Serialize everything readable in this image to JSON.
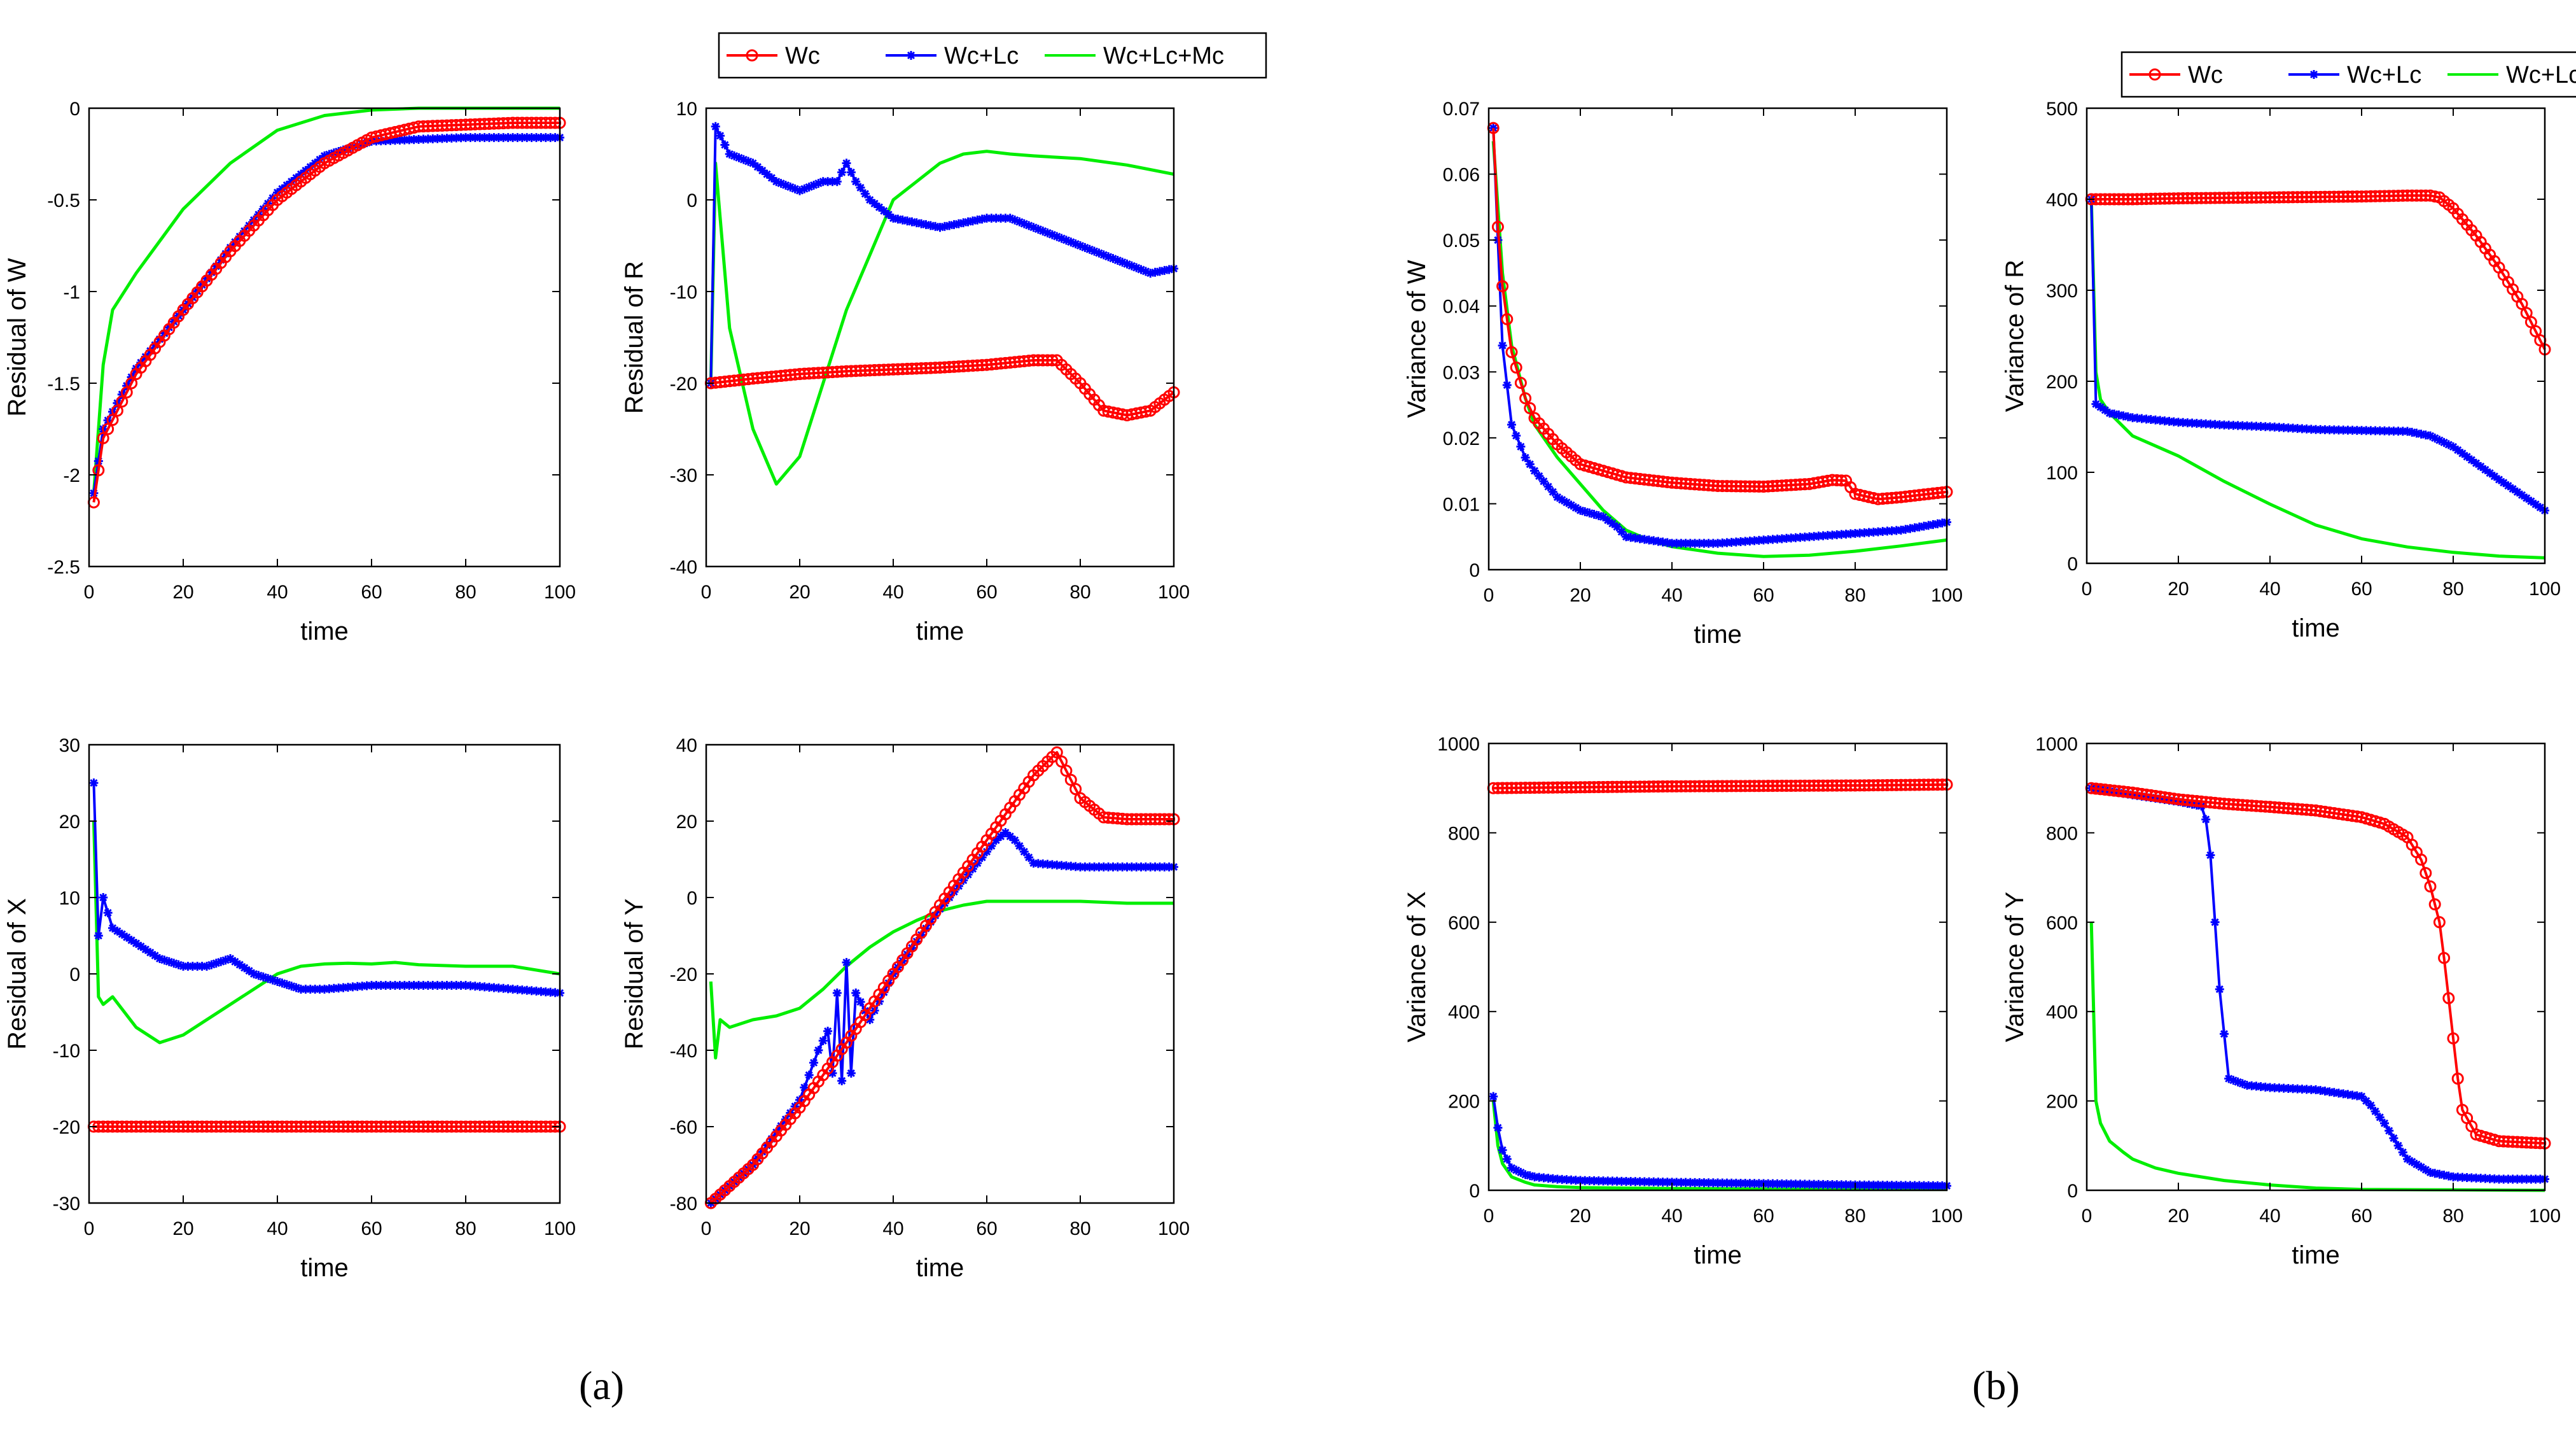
{
  "colors": {
    "Wc": "#ff0000",
    "Wc+Lc": "#0000ff",
    "Wc+Lc+Mc": "#00ee00"
  },
  "panels": {
    "a": "(a)",
    "b": "(b)"
  },
  "legend": {
    "entries": [
      "Wc",
      "Wc+Lc",
      "Wc+Lc+Mc"
    ]
  },
  "chart_data": [
    {
      "type": "line",
      "panel": "a",
      "ylabel": "Residual of W",
      "xlabel": "time",
      "xlim": [
        0,
        100
      ],
      "ylim": [
        -2.5,
        0
      ],
      "xticks": [
        0,
        20,
        40,
        60,
        80,
        100
      ],
      "yticks": [
        -2.5,
        -2,
        -1.5,
        -1,
        -0.5,
        0
      ],
      "series": [
        {
          "name": "Wc",
          "x": [
            1,
            3,
            10,
            20,
            30,
            40,
            50,
            60,
            70,
            80,
            90,
            100
          ],
          "y": [
            -2.15,
            -1.8,
            -1.45,
            -1.1,
            -0.78,
            -0.5,
            -0.3,
            -0.16,
            -0.1,
            -0.09,
            -0.08,
            -0.08
          ]
        },
        {
          "name": "Wc+Lc",
          "x": [
            1,
            3,
            10,
            20,
            30,
            40,
            50,
            60,
            70,
            80,
            90,
            100
          ],
          "y": [
            -2.1,
            -1.75,
            -1.42,
            -1.1,
            -0.76,
            -0.46,
            -0.26,
            -0.18,
            -0.17,
            -0.16,
            -0.16,
            -0.16
          ]
        },
        {
          "name": "Wc+Lc+Mc",
          "x": [
            1,
            3,
            5,
            10,
            20,
            30,
            40,
            50,
            60,
            70,
            80,
            100
          ],
          "y": [
            -2.1,
            -1.4,
            -1.1,
            -0.9,
            -0.55,
            -0.3,
            -0.12,
            -0.04,
            -0.01,
            0,
            0,
            0
          ]
        }
      ]
    },
    {
      "type": "line",
      "panel": "a",
      "ylabel": "Residual of R",
      "xlabel": "time",
      "xlim": [
        0,
        100
      ],
      "ylim": [
        -40,
        10
      ],
      "xticks": [
        0,
        20,
        40,
        60,
        80,
        100
      ],
      "yticks": [
        -40,
        -30,
        -20,
        -10,
        0,
        10
      ],
      "legend": "top",
      "series": [
        {
          "name": "Wc",
          "x": [
            1,
            10,
            20,
            30,
            40,
            50,
            60,
            70,
            75,
            80,
            85,
            90,
            95,
            100
          ],
          "y": [
            -20,
            -19.5,
            -19,
            -18.7,
            -18.5,
            -18.3,
            -18,
            -17.5,
            -17.5,
            -20,
            -23,
            -23.5,
            -23,
            -21
          ]
        },
        {
          "name": "Wc+Lc",
          "x": [
            1,
            2,
            5,
            10,
            15,
            20,
            25,
            28,
            30,
            32,
            35,
            40,
            50,
            60,
            65,
            70,
            80,
            90,
            95,
            100
          ],
          "y": [
            -20,
            8,
            5,
            4,
            2,
            1,
            2,
            2,
            4,
            2,
            0,
            -2,
            -3,
            -2,
            -2,
            -3,
            -5,
            -7,
            -8,
            -7.5
          ]
        },
        {
          "name": "Wc+Lc+Mc",
          "x": [
            1,
            2,
            3,
            5,
            10,
            15,
            20,
            25,
            30,
            35,
            40,
            45,
            50,
            55,
            60,
            65,
            70,
            80,
            90,
            100
          ],
          "y": [
            -20,
            4,
            -2,
            -14,
            -25,
            -31,
            -28,
            -20,
            -12,
            -6,
            0,
            2,
            4,
            5,
            5.3,
            5,
            4.8,
            4.5,
            3.8,
            2.8
          ]
        }
      ]
    },
    {
      "type": "line",
      "panel": "a",
      "ylabel": "Residual of X",
      "xlabel": "time",
      "xlim": [
        0,
        100
      ],
      "ylim": [
        -30,
        30
      ],
      "xticks": [
        0,
        20,
        40,
        60,
        80,
        100
      ],
      "yticks": [
        -30,
        -20,
        -10,
        0,
        10,
        20,
        30
      ],
      "series": [
        {
          "name": "Wc",
          "x": [
            1,
            10,
            20,
            30,
            40,
            50,
            60,
            70,
            80,
            90,
            100
          ],
          "y": [
            -20,
            -20,
            -20,
            -20,
            -20,
            -20,
            -20,
            -20,
            -20,
            -20,
            -20
          ]
        },
        {
          "name": "Wc+Lc",
          "x": [
            1,
            2,
            3,
            5,
            10,
            15,
            20,
            25,
            30,
            35,
            40,
            45,
            50,
            60,
            70,
            80,
            90,
            100
          ],
          "y": [
            25,
            5,
            10,
            6,
            4,
            2,
            1,
            1,
            2,
            0,
            -1,
            -2,
            -2,
            -1.5,
            -1.5,
            -1.5,
            -2,
            -2.5
          ]
        },
        {
          "name": "Wc+Lc+Mc",
          "x": [
            1,
            2,
            3,
            5,
            10,
            15,
            20,
            25,
            30,
            40,
            45,
            50,
            55,
            60,
            65,
            70,
            80,
            90,
            100
          ],
          "y": [
            20,
            -3,
            -4,
            -3,
            -7,
            -9,
            -8,
            -6,
            -4,
            0,
            1,
            1.3,
            1.4,
            1.3,
            1.5,
            1.2,
            1,
            1,
            0
          ]
        }
      ]
    },
    {
      "type": "line",
      "panel": "a",
      "ylabel": "Residual of Y",
      "xlabel": "time",
      "xlim": [
        0,
        100
      ],
      "ylim": [
        -80,
        40
      ],
      "xticks": [
        0,
        20,
        40,
        60,
        80,
        100
      ],
      "yticks": [
        -80,
        -60,
        -40,
        -20,
        0,
        20,
        40
      ],
      "series": [
        {
          "name": "Wc",
          "x": [
            1,
            10,
            20,
            30,
            40,
            50,
            60,
            70,
            75,
            80,
            85,
            90,
            100
          ],
          "y": [
            -80,
            -70,
            -55,
            -38,
            -20,
            -2,
            15,
            32,
            38,
            26,
            21,
            20.5,
            20.5
          ]
        },
        {
          "name": "Wc+Lc",
          "x": [
            1,
            10,
            20,
            24,
            26,
            27,
            28,
            29,
            30,
            31,
            32,
            35,
            40,
            50,
            60,
            62,
            64,
            66,
            70,
            80,
            90,
            100
          ],
          "y": [
            -80,
            -70,
            -53,
            -40,
            -35,
            -46,
            -25,
            -48,
            -17,
            -46,
            -25,
            -32,
            -20,
            -3,
            12,
            15,
            17,
            15,
            9,
            8,
            8,
            8
          ]
        },
        {
          "name": "Wc+Lc+Mc",
          "x": [
            1,
            2,
            3,
            5,
            10,
            15,
            20,
            25,
            30,
            35,
            40,
            45,
            50,
            55,
            60,
            70,
            80,
            90,
            100
          ],
          "y": [
            -22,
            -42,
            -32,
            -34,
            -32,
            -31,
            -29,
            -24,
            -18,
            -13,
            -9,
            -6,
            -3.5,
            -2,
            -1,
            -1,
            -1,
            -1.5,
            -1.5
          ]
        }
      ]
    },
    {
      "type": "line",
      "panel": "b",
      "ylabel": "Variance of W",
      "xlabel": "time",
      "xlim": [
        0,
        100
      ],
      "ylim": [
        0,
        0.07
      ],
      "xticks": [
        0,
        20,
        40,
        60,
        80,
        100
      ],
      "yticks": [
        0,
        0.01,
        0.02,
        0.03,
        0.04,
        0.05,
        0.06,
        0.07
      ],
      "series": [
        {
          "name": "Wc",
          "x": [
            1,
            2,
            3,
            5,
            8,
            10,
            15,
            20,
            30,
            40,
            50,
            60,
            70,
            75,
            78,
            80,
            85,
            90,
            100
          ],
          "y": [
            0.067,
            0.052,
            0.043,
            0.033,
            0.026,
            0.023,
            0.019,
            0.016,
            0.014,
            0.0132,
            0.0127,
            0.0126,
            0.013,
            0.0136,
            0.0135,
            0.0115,
            0.0107,
            0.011,
            0.0118
          ]
        },
        {
          "name": "Wc+Lc",
          "x": [
            1,
            2,
            3,
            5,
            8,
            10,
            15,
            20,
            25,
            28,
            30,
            35,
            40,
            50,
            60,
            70,
            80,
            90,
            100
          ],
          "y": [
            0.067,
            0.05,
            0.034,
            0.022,
            0.017,
            0.015,
            0.011,
            0.009,
            0.008,
            0.0065,
            0.005,
            0.0045,
            0.004,
            0.004,
            0.0045,
            0.005,
            0.0055,
            0.006,
            0.0072
          ]
        },
        {
          "name": "Wc+Lc+Mc",
          "x": [
            1,
            2,
            3,
            5,
            8,
            10,
            15,
            20,
            25,
            30,
            35,
            40,
            50,
            60,
            70,
            80,
            90,
            100
          ],
          "y": [
            0.065,
            0.055,
            0.045,
            0.034,
            0.026,
            0.022,
            0.017,
            0.013,
            0.009,
            0.006,
            0.0045,
            0.0035,
            0.0025,
            0.002,
            0.0022,
            0.0028,
            0.0036,
            0.0045
          ]
        }
      ]
    },
    {
      "type": "line",
      "panel": "b",
      "ylabel": "Variance of R",
      "xlabel": "time",
      "xlim": [
        0,
        100
      ],
      "ylim": [
        0,
        500
      ],
      "xticks": [
        0,
        20,
        40,
        60,
        80,
        100
      ],
      "yticks": [
        0,
        100,
        200,
        300,
        400,
        500
      ],
      "legend": "top",
      "series": [
        {
          "name": "Wc",
          "x": [
            1,
            10,
            20,
            40,
            60,
            70,
            75,
            77,
            80,
            85,
            90,
            95,
            100
          ],
          "y": [
            400,
            400,
            401,
            402,
            403,
            404,
            404,
            402,
            390,
            360,
            325,
            285,
            235
          ]
        },
        {
          "name": "Wc+Lc",
          "x": [
            1,
            2,
            5,
            10,
            20,
            30,
            40,
            50,
            60,
            70,
            75,
            80,
            85,
            90,
            95,
            100
          ],
          "y": [
            400,
            175,
            165,
            160,
            155,
            152,
            150,
            147,
            146,
            145,
            140,
            128,
            110,
            92,
            75,
            58
          ]
        },
        {
          "name": "Wc+Lc+Mc",
          "x": [
            1,
            2,
            3,
            5,
            10,
            20,
            30,
            40,
            50,
            60,
            70,
            80,
            90,
            100
          ],
          "y": [
            400,
            210,
            180,
            165,
            140,
            118,
            90,
            65,
            42,
            27,
            18,
            12,
            8,
            6
          ]
        }
      ]
    },
    {
      "type": "line",
      "panel": "b",
      "ylabel": "Variance of X",
      "xlabel": "time",
      "xlim": [
        0,
        100
      ],
      "ylim": [
        0,
        1000
      ],
      "xticks": [
        0,
        20,
        40,
        60,
        80,
        100
      ],
      "yticks": [
        0,
        200,
        400,
        600,
        800,
        1000
      ],
      "series": [
        {
          "name": "Wc",
          "x": [
            1,
            20,
            40,
            60,
            80,
            100
          ],
          "y": [
            900,
            902,
            904,
            905,
            906,
            908
          ]
        },
        {
          "name": "Wc+Lc",
          "x": [
            1,
            2,
            3,
            5,
            8,
            10,
            15,
            20,
            40,
            60,
            80,
            100
          ],
          "y": [
            210,
            140,
            90,
            50,
            35,
            30,
            25,
            22,
            18,
            15,
            12,
            10
          ]
        },
        {
          "name": "Wc+Lc+Mc",
          "x": [
            1,
            2,
            3,
            5,
            8,
            10,
            15,
            20,
            40,
            60,
            80,
            100
          ],
          "y": [
            200,
            100,
            60,
            30,
            18,
            12,
            8,
            6,
            4,
            3,
            2,
            2
          ]
        }
      ]
    },
    {
      "type": "line",
      "panel": "b",
      "ylabel": "Variance of Y",
      "xlabel": "time",
      "xlim": [
        0,
        100
      ],
      "ylim": [
        0,
        1000
      ],
      "xticks": [
        0,
        20,
        40,
        60,
        80,
        100
      ],
      "yticks": [
        0,
        200,
        400,
        600,
        800,
        1000
      ],
      "series": [
        {
          "name": "Wc",
          "x": [
            1,
            10,
            20,
            30,
            40,
            50,
            60,
            65,
            70,
            73,
            75,
            77,
            78,
            79,
            80,
            81,
            82,
            85,
            90,
            100
          ],
          "y": [
            900,
            890,
            875,
            865,
            858,
            850,
            835,
            820,
            790,
            740,
            680,
            600,
            520,
            430,
            340,
            250,
            180,
            125,
            110,
            105
          ]
        },
        {
          "name": "Wc+Lc",
          "x": [
            1,
            10,
            20,
            25,
            26,
            27,
            28,
            29,
            30,
            31,
            35,
            40,
            50,
            60,
            62,
            65,
            68,
            70,
            75,
            80,
            90,
            100
          ],
          "y": [
            900,
            885,
            870,
            860,
            830,
            750,
            600,
            450,
            350,
            250,
            235,
            230,
            225,
            210,
            190,
            150,
            100,
            70,
            40,
            30,
            25,
            25
          ]
        },
        {
          "name": "Wc+Lc+Mc",
          "x": [
            1,
            2,
            3,
            5,
            8,
            10,
            15,
            20,
            30,
            40,
            50,
            60,
            80,
            100
          ],
          "y": [
            600,
            200,
            150,
            110,
            85,
            70,
            50,
            38,
            22,
            12,
            5,
            2,
            1,
            0
          ]
        }
      ]
    }
  ]
}
